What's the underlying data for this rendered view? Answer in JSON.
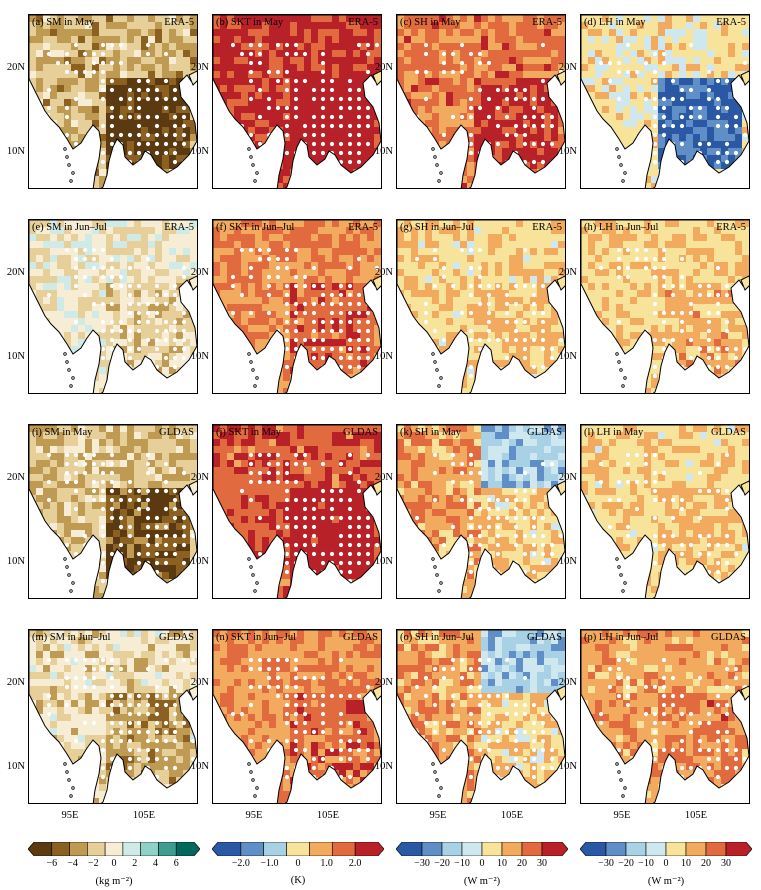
{
  "lat_labels": [
    "20N",
    "10N"
  ],
  "lon_labels": [
    "95E",
    "105E"
  ],
  "panels": [
    {
      "label": "(a) SM in May",
      "source": "ERA-5",
      "var": "SM"
    },
    {
      "label": "(b) SKT in May",
      "source": "ERA-5",
      "var": "SKT"
    },
    {
      "label": "(c) SH in May",
      "source": "ERA-5",
      "var": "SH"
    },
    {
      "label": "(d) LH in May",
      "source": "ERA-5",
      "var": "LH"
    },
    {
      "label": "(e) SM in Jun–Jul",
      "source": "ERA-5",
      "var": "SM"
    },
    {
      "label": "(f) SKT in Jun–Jul",
      "source": "ERA-5",
      "var": "SKT"
    },
    {
      "label": "(g) SH in Jun–Jul",
      "source": "ERA-5",
      "var": "SH"
    },
    {
      "label": "(h) LH in Jun–Jul",
      "source": "ERA-5",
      "var": "LH"
    },
    {
      "label": "(i) SM in May",
      "source": "GLDAS",
      "var": "SM"
    },
    {
      "label": "(j) SKT in May",
      "source": "GLDAS",
      "var": "SKT"
    },
    {
      "label": "(k) SH in May",
      "source": "GLDAS",
      "var": "SH"
    },
    {
      "label": "(l) LH in May",
      "source": "GLDAS",
      "var": "LH"
    },
    {
      "label": "(m) SM in Jun–Jul",
      "source": "GLDAS",
      "var": "SM"
    },
    {
      "label": "(n) SKT in Jun–Jul",
      "source": "GLDAS",
      "var": "SKT"
    },
    {
      "label": "(o) SH in Jun–Jul",
      "source": "GLDAS",
      "var": "SH"
    },
    {
      "label": "(p) LH in Jun–Jul",
      "source": "GLDAS",
      "var": "LH"
    }
  ],
  "colorbars": [
    {
      "name": "SM",
      "unit": "(kg m⁻²)",
      "ticks": [
        "−6",
        "−4",
        "−2",
        "0",
        "2",
        "4",
        "6"
      ],
      "colors": [
        "#5b3a12",
        "#8c6021",
        "#bf9a52",
        "#e6cf98",
        "#f6edd4",
        "#cfeae7",
        "#8fd1c7",
        "#3f9c91",
        "#00695b"
      ]
    },
    {
      "name": "SKT",
      "unit": "(K)",
      "ticks": [
        "−2.0",
        "−1.0",
        "0",
        "1.0",
        "2.0"
      ],
      "colors": [
        "#2b58a4",
        "#5f8fc6",
        "#a8d1e6",
        "#f7e39a",
        "#f2aa5f",
        "#e26a3f",
        "#b82127"
      ]
    },
    {
      "name": "SH",
      "unit": "(W m⁻²)",
      "ticks": [
        "−30",
        "−20",
        "−10",
        "0",
        "10",
        "20",
        "30"
      ],
      "colors": [
        "#2b58a4",
        "#5f8fc6",
        "#a8d1e6",
        "#cfe8ef",
        "#f7e39a",
        "#f2aa5f",
        "#e26a3f",
        "#b82127"
      ]
    },
    {
      "name": "LH",
      "unit": "(W m⁻²)",
      "ticks": [
        "−30",
        "−20",
        "−10",
        "0",
        "10",
        "20",
        "30"
      ],
      "colors": [
        "#2b58a4",
        "#5f8fc6",
        "#a8d1e6",
        "#cfe8ef",
        "#f7e39a",
        "#f2aa5f",
        "#e26a3f",
        "#b82127"
      ]
    }
  ]
}
